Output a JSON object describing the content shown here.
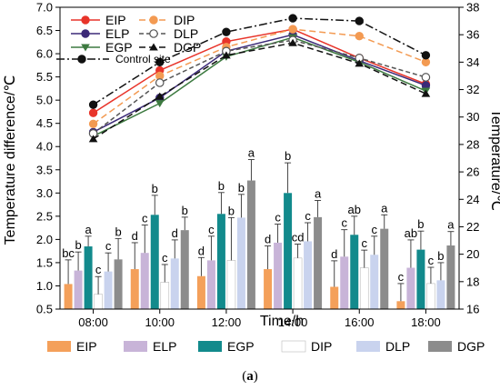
{
  "caption": {
    "open": "(",
    "letter": "a",
    "close": ")"
  },
  "chart_data": {
    "type": "bar+line",
    "categories": [
      "08:00",
      "10:00",
      "12:00",
      "14:00",
      "16:00",
      "18:00"
    ],
    "xlabel": "Time/h",
    "ylabel_left": "Temperature difference/℃",
    "ylabel_right": "Temperature/℃",
    "ylim_left": [
      0.5,
      7.0
    ],
    "ylim_right": [
      16,
      38
    ],
    "yticks_left": [
      "0.5",
      "1.0",
      "1.5",
      "2.0",
      "2.5",
      "3.0",
      "3.5",
      "4.0",
      "4.5",
      "5.0",
      "5.5",
      "6.0",
      "6.5",
      "7.0"
    ],
    "yticks_right": [
      "16",
      "18",
      "20",
      "22",
      "24",
      "26",
      "28",
      "30",
      "32",
      "34",
      "36",
      "38"
    ],
    "bar_series": [
      {
        "name": "EIP",
        "color": "#f4a05a",
        "values": [
          1.04,
          1.36,
          1.21,
          1.36,
          0.98,
          0.67
        ],
        "errors": [
          0.52,
          0.57,
          0.4,
          0.5,
          0.56,
          0.38
        ],
        "labels": [
          "bc",
          "d",
          "d",
          "d",
          "d",
          "c"
        ]
      },
      {
        "name": "ELP",
        "color": "#c8b4d8",
        "values": [
          1.33,
          1.71,
          1.55,
          1.93,
          1.63,
          1.39
        ],
        "errors": [
          0.4,
          0.6,
          0.52,
          0.4,
          0.58,
          0.6
        ],
        "labels": [
          "b",
          "c",
          "c",
          "c",
          "c",
          "ab"
        ]
      },
      {
        "name": "EGP",
        "color": "#128a8c",
        "values": [
          1.85,
          2.53,
          2.55,
          3.0,
          2.1,
          1.78
        ],
        "errors": [
          0.22,
          0.42,
          0.46,
          0.65,
          0.4,
          0.4
        ],
        "labels": [
          "a",
          "b",
          "b",
          "b",
          "ab",
          "b"
        ]
      },
      {
        "name": "DIP",
        "color": "#ffffff",
        "values": [
          0.82,
          1.08,
          1.55,
          1.6,
          1.39,
          1.05
        ],
        "errors": [
          0.38,
          0.38,
          0.92,
          0.3,
          0.38,
          0.35
        ],
        "labels": [
          "c",
          "c",
          "b",
          "cd",
          "c",
          "c"
        ]
      },
      {
        "name": "DLP",
        "color": "#c9d3ee",
        "values": [
          1.31,
          1.59,
          2.47,
          1.96,
          1.67,
          1.12
        ],
        "errors": [
          0.4,
          0.4,
          0.5,
          0.4,
          0.4,
          0.38
        ],
        "labels": [
          "c",
          "d",
          "b",
          "c",
          "c",
          "b"
        ]
      },
      {
        "name": "DGP",
        "color": "#8c8c8c",
        "values": [
          1.57,
          2.2,
          3.27,
          2.48,
          2.23,
          1.87
        ],
        "errors": [
          0.45,
          0.28,
          0.45,
          0.36,
          0.3,
          0.3
        ],
        "labels": [
          "b",
          "b",
          "a",
          "a",
          "a",
          "a"
        ]
      }
    ],
    "line_series": [
      {
        "name": "EIP",
        "color": "#e8342a",
        "marker": "circle-filled",
        "dash": "",
        "values": [
          30.3,
          33.4,
          35.5,
          36.4,
          34.3,
          32.4
        ]
      },
      {
        "name": "ELP",
        "color": "#3c2a78",
        "marker": "circle-filled",
        "dash": "",
        "values": [
          28.9,
          31.4,
          34.8,
          36.0,
          34.1,
          32.3
        ]
      },
      {
        "name": "EGP",
        "color": "#3d7a40",
        "marker": "triangle-down",
        "dash": "",
        "values": [
          28.6,
          31.0,
          34.4,
          35.8,
          34.0,
          31.9
        ]
      },
      {
        "name": "DIP",
        "color": "#f39a52",
        "marker": "circle-filled",
        "dash": "7,4",
        "values": [
          29.5,
          33.0,
          35.1,
          36.4,
          35.9,
          34.0
        ]
      },
      {
        "name": "DLP",
        "color": "#555555",
        "marker": "circle-open",
        "dash": "5,3",
        "values": [
          28.8,
          32.5,
          34.8,
          35.6,
          34.3,
          32.9
        ]
      },
      {
        "name": "DGP",
        "color": "#111111",
        "marker": "triangle-up",
        "dash": "7,4",
        "values": [
          28.4,
          31.5,
          34.5,
          35.4,
          33.9,
          31.7
        ]
      },
      {
        "name": "Control site",
        "color": "#111111",
        "marker": "circle-filled",
        "dash": "9,3,2,3",
        "values": [
          30.9,
          34.0,
          36.2,
          37.2,
          37.0,
          34.5
        ]
      }
    ]
  }
}
